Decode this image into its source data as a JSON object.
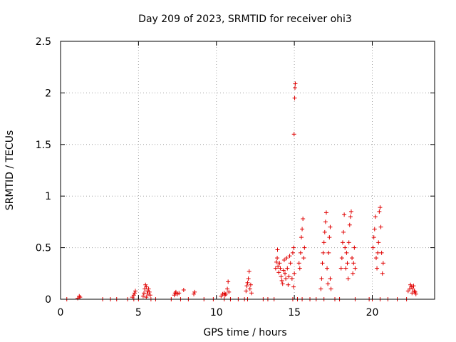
{
  "chart_data": {
    "type": "scatter",
    "title": "Day 209 of 2023, SRMTID for receiver ohi3",
    "xlabel": "GPS time / hours",
    "ylabel": "SRMTID / TECUs",
    "xlim": [
      0,
      24
    ],
    "ylim": [
      0,
      2.5
    ],
    "xticks": [
      0,
      5,
      10,
      15,
      20
    ],
    "xtick_labels": [
      "0",
      "5",
      "10",
      "15",
      "20"
    ],
    "yticks": [
      0,
      0.5,
      1,
      1.5,
      2,
      2.5
    ],
    "ytick_labels": [
      "0",
      "0.5",
      "1",
      "1.5",
      "2",
      "2.5"
    ],
    "grid": true,
    "marker": "+",
    "series": [
      {
        "name": "SRMTID",
        "color": "#e00000",
        "points": [
          [
            0.4,
            0.0
          ],
          [
            1.1,
            0.01
          ],
          [
            1.2,
            0.03
          ],
          [
            1.25,
            0.02
          ],
          [
            2.7,
            0.0
          ],
          [
            3.2,
            0.0
          ],
          [
            3.6,
            0.0
          ],
          [
            4.3,
            0.0
          ],
          [
            4.6,
            0.02
          ],
          [
            4.7,
            0.04
          ],
          [
            4.75,
            0.06
          ],
          [
            4.8,
            0.08
          ],
          [
            4.7,
            0.0
          ],
          [
            5.0,
            0.0
          ],
          [
            5.3,
            0.03
          ],
          [
            5.35,
            0.06
          ],
          [
            5.4,
            0.1
          ],
          [
            5.45,
            0.14
          ],
          [
            5.5,
            0.12
          ],
          [
            5.55,
            0.08
          ],
          [
            5.6,
            0.05
          ],
          [
            5.65,
            0.1
          ],
          [
            5.7,
            0.07
          ],
          [
            5.75,
            0.04
          ],
          [
            5.5,
            0.02
          ],
          [
            5.8,
            0.0
          ],
          [
            6.1,
            0.0
          ],
          [
            7.1,
            0.0
          ],
          [
            7.3,
            0.04
          ],
          [
            7.35,
            0.06
          ],
          [
            7.4,
            0.07
          ],
          [
            7.5,
            0.05
          ],
          [
            7.6,
            0.06
          ],
          [
            7.7,
            0.0
          ],
          [
            7.9,
            0.09
          ],
          [
            8.2,
            0.0
          ],
          [
            8.55,
            0.05
          ],
          [
            8.6,
            0.07
          ],
          [
            9.2,
            0.0
          ],
          [
            9.8,
            0.0
          ],
          [
            10.3,
            0.03
          ],
          [
            10.4,
            0.05
          ],
          [
            10.5,
            0.06
          ],
          [
            10.55,
            0.04
          ],
          [
            10.6,
            0.05
          ],
          [
            10.7,
            0.1
          ],
          [
            10.75,
            0.17
          ],
          [
            10.8,
            0.07
          ],
          [
            10.5,
            0.0
          ],
          [
            10.9,
            0.0
          ],
          [
            11.4,
            0.0
          ],
          [
            11.8,
            0.0
          ],
          [
            11.9,
            0.08
          ],
          [
            11.95,
            0.13
          ],
          [
            12.0,
            0.16
          ],
          [
            12.05,
            0.2
          ],
          [
            12.1,
            0.27
          ],
          [
            12.15,
            0.1
          ],
          [
            12.2,
            0.14
          ],
          [
            12.25,
            0.06
          ],
          [
            12.0,
            0.0
          ],
          [
            13.0,
            0.0
          ],
          [
            13.3,
            0.0
          ],
          [
            13.7,
            0.0
          ],
          [
            13.8,
            0.3
          ],
          [
            13.85,
            0.36
          ],
          [
            13.9,
            0.4
          ],
          [
            13.92,
            0.48
          ],
          [
            13.95,
            0.32
          ],
          [
            14.0,
            0.26
          ],
          [
            14.05,
            0.35
          ],
          [
            14.1,
            0.3
          ],
          [
            14.15,
            0.22
          ],
          [
            14.2,
            0.18
          ],
          [
            14.25,
            0.15
          ],
          [
            14.3,
            0.28
          ],
          [
            14.35,
            0.38
          ],
          [
            14.4,
            0.25
          ],
          [
            14.45,
            0.2
          ],
          [
            14.5,
            0.4
          ],
          [
            14.55,
            0.3
          ],
          [
            14.6,
            0.14
          ],
          [
            14.65,
            0.22
          ],
          [
            14.7,
            0.42
          ],
          [
            14.75,
            0.35
          ],
          [
            14.85,
            0.2
          ],
          [
            14.9,
            0.45
          ],
          [
            14.95,
            0.5
          ],
          [
            15.0,
            0.25
          ],
          [
            14.95,
            0.12
          ],
          [
            14.98,
            1.6
          ],
          [
            15.02,
            1.95
          ],
          [
            15.04,
            2.05
          ],
          [
            15.06,
            2.09
          ],
          [
            14.9,
            0.0
          ],
          [
            15.2,
            0.0
          ],
          [
            15.3,
            0.35
          ],
          [
            15.35,
            0.3
          ],
          [
            15.4,
            0.45
          ],
          [
            15.45,
            0.6
          ],
          [
            15.5,
            0.68
          ],
          [
            15.55,
            0.78
          ],
          [
            15.6,
            0.4
          ],
          [
            15.65,
            0.5
          ],
          [
            15.5,
            0.0
          ],
          [
            16.0,
            0.0
          ],
          [
            16.4,
            0.0
          ],
          [
            16.7,
            0.1
          ],
          [
            16.75,
            0.2
          ],
          [
            16.8,
            0.35
          ],
          [
            16.85,
            0.45
          ],
          [
            16.9,
            0.55
          ],
          [
            16.95,
            0.65
          ],
          [
            17.0,
            0.75
          ],
          [
            17.05,
            0.84
          ],
          [
            17.1,
            0.3
          ],
          [
            17.15,
            0.15
          ],
          [
            17.2,
            0.45
          ],
          [
            17.25,
            0.6
          ],
          [
            17.3,
            0.2
          ],
          [
            17.35,
            0.1
          ],
          [
            17.3,
            0.7
          ],
          [
            16.9,
            0.0
          ],
          [
            17.6,
            0.0
          ],
          [
            17.9,
            0.0
          ],
          [
            18.0,
            0.3
          ],
          [
            18.05,
            0.4
          ],
          [
            18.1,
            0.55
          ],
          [
            18.15,
            0.65
          ],
          [
            18.2,
            0.82
          ],
          [
            18.25,
            0.5
          ],
          [
            18.3,
            0.3
          ],
          [
            18.35,
            0.45
          ],
          [
            18.4,
            0.35
          ],
          [
            18.45,
            0.2
          ],
          [
            18.5,
            0.55
          ],
          [
            18.55,
            0.72
          ],
          [
            18.6,
            0.8
          ],
          [
            18.65,
            0.85
          ],
          [
            18.7,
            0.4
          ],
          [
            18.75,
            0.25
          ],
          [
            18.8,
            0.35
          ],
          [
            18.85,
            0.5
          ],
          [
            18.9,
            0.3
          ],
          [
            18.9,
            0.0
          ],
          [
            19.8,
            0.0
          ],
          [
            20.0,
            0.0
          ],
          [
            20.05,
            0.5
          ],
          [
            20.1,
            0.6
          ],
          [
            20.15,
            0.68
          ],
          [
            20.2,
            0.8
          ],
          [
            20.25,
            0.4
          ],
          [
            20.3,
            0.3
          ],
          [
            20.35,
            0.45
          ],
          [
            20.4,
            0.55
          ],
          [
            20.45,
            0.85
          ],
          [
            20.5,
            0.89
          ],
          [
            20.55,
            0.7
          ],
          [
            20.6,
            0.45
          ],
          [
            20.65,
            0.25
          ],
          [
            20.7,
            0.35
          ],
          [
            20.5,
            0.0
          ],
          [
            21.0,
            0.0
          ],
          [
            21.6,
            0.0
          ],
          [
            22.2,
            0.0
          ],
          [
            22.3,
            0.08
          ],
          [
            22.4,
            0.1
          ],
          [
            22.45,
            0.14
          ],
          [
            22.5,
            0.12
          ],
          [
            22.55,
            0.06
          ],
          [
            22.6,
            0.1
          ],
          [
            22.65,
            0.13
          ],
          [
            22.7,
            0.08
          ],
          [
            22.75,
            0.07
          ],
          [
            22.8,
            0.05
          ]
        ]
      }
    ]
  }
}
